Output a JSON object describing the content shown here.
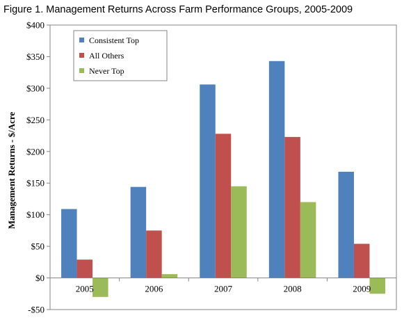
{
  "chart_data": {
    "type": "bar",
    "title": "Figure 1. Management Returns Across Farm Performance Groups, 2005-2009",
    "xlabel": "",
    "ylabel": "Management Returns - $/Acre",
    "categories": [
      "2005",
      "2006",
      "2007",
      "2008",
      "2009"
    ],
    "series": [
      {
        "name": "Consistent Top",
        "color": "#4F81BD",
        "values": [
          109,
          144,
          306,
          343,
          168
        ]
      },
      {
        "name": "All Others",
        "color": "#C0504D",
        "values": [
          29,
          75,
          228,
          223,
          54
        ]
      },
      {
        "name": "Never Top",
        "color": "#9BBB59",
        "values": [
          -30,
          6,
          145,
          120,
          -25
        ]
      }
    ],
    "ylim": [
      -50,
      400
    ],
    "yticks": [
      -50,
      0,
      50,
      100,
      150,
      200,
      250,
      300,
      350,
      400
    ],
    "ytick_labels": [
      "-$50",
      "$0",
      "$50",
      "$100",
      "$150",
      "$200",
      "$250",
      "$300",
      "$350",
      "$400"
    ],
    "grid": false,
    "legend_position": "top-left"
  }
}
